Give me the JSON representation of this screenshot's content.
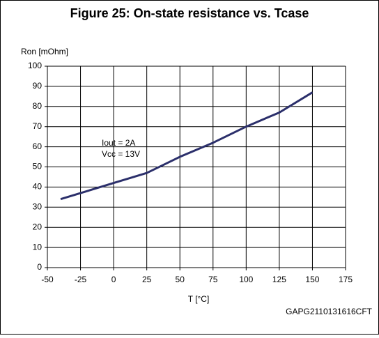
{
  "chart_data": {
    "type": "line",
    "title": "Figure 25: On-state resistance vs. Tcase",
    "y_label": "Ron [mOhm]",
    "x_label": "T [°C]",
    "annotations": [
      "Iout = 2A",
      "Vcc = 13V"
    ],
    "code": "GAPG2110131616CFT",
    "x": [
      -40,
      0,
      25,
      50,
      75,
      100,
      125,
      150
    ],
    "values": [
      34,
      42,
      47,
      55,
      62,
      70,
      77,
      87
    ],
    "color": "#2b2f6b",
    "xlim": [
      -50,
      175
    ],
    "xticks": [
      -50,
      -25,
      0,
      25,
      50,
      75,
      100,
      125,
      150,
      175
    ],
    "ylim": [
      0,
      100
    ],
    "yticks": [
      0,
      10,
      20,
      30,
      40,
      50,
      60,
      70,
      80,
      90,
      100
    ],
    "grid": true
  }
}
